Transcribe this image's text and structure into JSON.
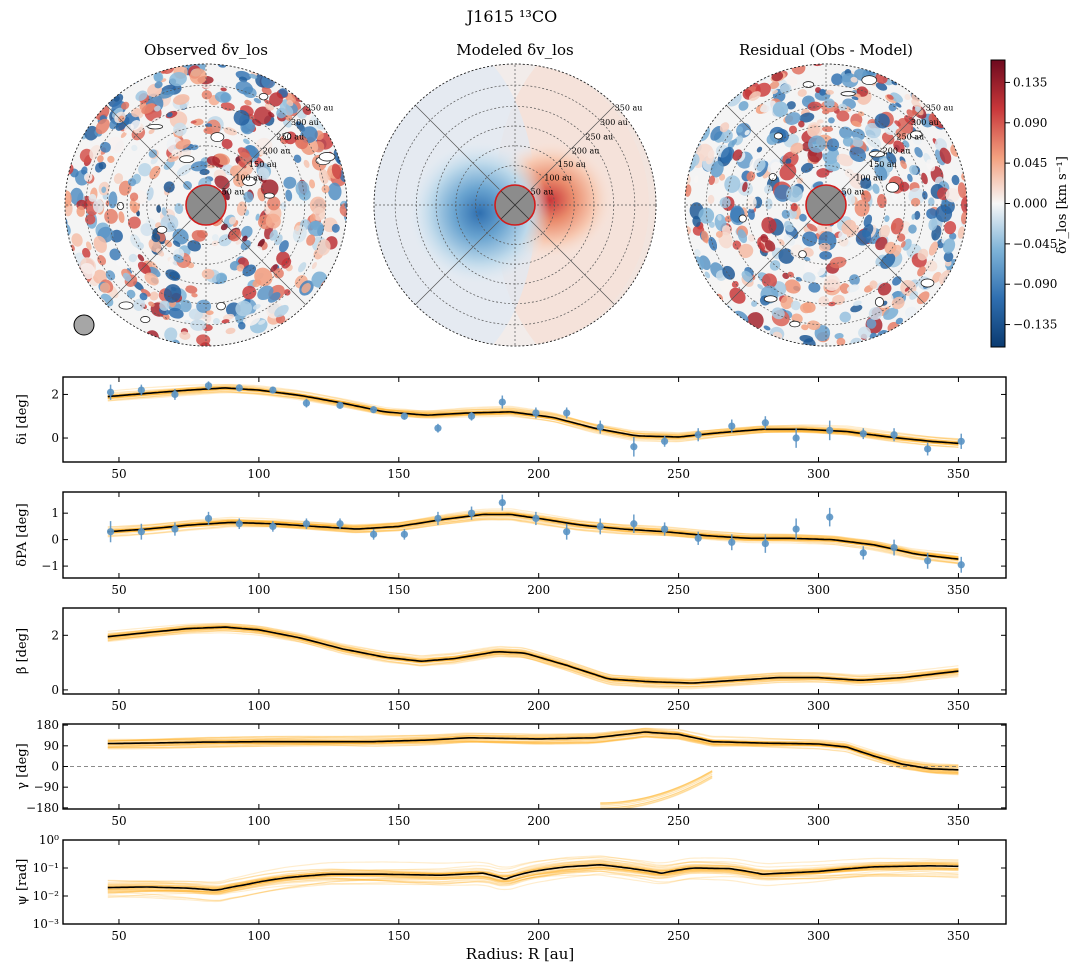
{
  "figure": {
    "title": "J1615 ¹³CO",
    "xlabel": "Radius: R [au]"
  },
  "maps": [
    {
      "title": "Observed δv_los",
      "kind": "observed"
    },
    {
      "title": "Modeled δv_los",
      "kind": "model"
    },
    {
      "title": "Residual (Obs - Model)",
      "kind": "residual"
    }
  ],
  "ring_labels": [
    "50 au",
    "100 au",
    "150 au",
    "200 au",
    "250 au",
    "300 au",
    "350 au"
  ],
  "colorbar": {
    "label": "δv_los [km s⁻¹]",
    "ticks": [
      "0.135",
      "0.090",
      "0.045",
      "0.000",
      "−0.045",
      "−0.090",
      "−0.135"
    ],
    "tick_values": [
      0.135,
      0.09,
      0.045,
      0.0,
      -0.045,
      -0.09,
      -0.135
    ],
    "range": [
      -0.16,
      0.16
    ],
    "colors": [
      "#0a3a70",
      "#2f6fb0",
      "#7fb4d8",
      "#f7f7f7",
      "#f3a07f",
      "#c8373a",
      "#6e0a1e"
    ]
  },
  "colors": {
    "band": "#ffae1a",
    "line": "#000000",
    "points": "#5a93c4"
  },
  "chart_data": [
    {
      "type": "line",
      "ylabel": "δi [deg]",
      "ylim": [
        -1.1,
        2.8
      ],
      "yticks": [
        0,
        2
      ],
      "xlim": [
        30,
        367
      ],
      "xticks": [
        50,
        100,
        150,
        200,
        250,
        300,
        350
      ],
      "series": [
        {
          "role": "fit",
          "x": [
            46,
            60,
            75,
            88,
            100,
            115,
            130,
            145,
            160,
            175,
            190,
            205,
            220,
            235,
            250,
            265,
            280,
            295,
            310,
            325,
            340,
            351
          ],
          "y": [
            1.9,
            2.05,
            2.2,
            2.3,
            2.2,
            1.95,
            1.6,
            1.2,
            1.05,
            1.15,
            1.2,
            0.95,
            0.45,
            0.1,
            0.05,
            0.25,
            0.4,
            0.4,
            0.3,
            0.05,
            -0.15,
            -0.25
          ]
        },
        {
          "role": "data",
          "x": [
            47,
            58,
            70,
            82,
            93,
            105,
            117,
            129,
            141,
            152,
            164,
            176,
            187,
            199,
            210,
            222,
            234,
            245,
            257,
            269,
            281,
            292,
            304,
            316,
            327,
            339,
            351
          ],
          "y": [
            2.1,
            2.2,
            2.0,
            2.4,
            2.3,
            2.2,
            1.6,
            1.5,
            1.3,
            1.0,
            0.45,
            1.0,
            1.65,
            1.15,
            1.15,
            0.5,
            -0.4,
            -0.15,
            0.15,
            0.55,
            0.7,
            0.0,
            0.35,
            0.2,
            0.15,
            -0.5,
            -0.15
          ],
          "err": [
            0.35,
            0.25,
            0.25,
            0.2,
            0.15,
            0.15,
            0.2,
            0.15,
            0.15,
            0.15,
            0.2,
            0.2,
            0.3,
            0.25,
            0.25,
            0.3,
            0.45,
            0.25,
            0.3,
            0.3,
            0.3,
            0.45,
            0.45,
            0.25,
            0.3,
            0.3,
            0.35
          ]
        }
      ]
    },
    {
      "type": "line",
      "ylabel": "δPA [deg]",
      "ylim": [
        -1.45,
        1.8
      ],
      "yticks": [
        -1,
        0,
        1
      ],
      "xlim": [
        30,
        367
      ],
      "xticks": [
        50,
        100,
        150,
        200,
        250,
        300,
        350
      ],
      "series": [
        {
          "role": "fit",
          "x": [
            46,
            60,
            75,
            90,
            105,
            120,
            135,
            150,
            165,
            180,
            190,
            200,
            215,
            230,
            245,
            260,
            275,
            290,
            305,
            320,
            335,
            351
          ],
          "y": [
            0.3,
            0.4,
            0.55,
            0.65,
            0.6,
            0.5,
            0.4,
            0.5,
            0.75,
            0.95,
            0.95,
            0.8,
            0.55,
            0.4,
            0.3,
            0.15,
            0.05,
            0.05,
            0.0,
            -0.2,
            -0.55,
            -0.75
          ]
        },
        {
          "role": "data",
          "x": [
            47,
            58,
            70,
            82,
            93,
            105,
            117,
            129,
            141,
            152,
            164,
            176,
            187,
            199,
            210,
            222,
            234,
            245,
            257,
            269,
            281,
            292,
            304,
            316,
            327,
            339,
            351
          ],
          "y": [
            0.3,
            0.3,
            0.4,
            0.8,
            0.6,
            0.5,
            0.6,
            0.6,
            0.2,
            0.2,
            0.8,
            1.0,
            1.4,
            0.8,
            0.3,
            0.5,
            0.6,
            0.4,
            0.05,
            -0.1,
            -0.15,
            0.4,
            0.85,
            -0.5,
            -0.3,
            -0.8,
            -0.95
          ],
          "err": [
            0.4,
            0.3,
            0.25,
            0.25,
            0.2,
            0.2,
            0.2,
            0.2,
            0.2,
            0.2,
            0.25,
            0.25,
            0.3,
            0.25,
            0.3,
            0.3,
            0.35,
            0.25,
            0.25,
            0.3,
            0.35,
            0.4,
            0.35,
            0.25,
            0.3,
            0.3,
            0.3
          ]
        }
      ]
    },
    {
      "type": "line",
      "ylabel": "β [deg]",
      "ylim": [
        -0.15,
        3.0
      ],
      "yticks": [
        0,
        2
      ],
      "xlim": [
        30,
        367
      ],
      "xticks": [
        50,
        100,
        150,
        200,
        250,
        300,
        350
      ],
      "series": [
        {
          "role": "fit",
          "x": [
            46,
            60,
            75,
            88,
            100,
            115,
            130,
            145,
            158,
            170,
            185,
            195,
            210,
            225,
            240,
            255,
            270,
            285,
            300,
            315,
            330,
            351
          ],
          "y": [
            1.95,
            2.1,
            2.25,
            2.3,
            2.2,
            1.9,
            1.5,
            1.2,
            1.05,
            1.15,
            1.4,
            1.35,
            0.9,
            0.4,
            0.3,
            0.25,
            0.35,
            0.45,
            0.45,
            0.35,
            0.45,
            0.7
          ]
        }
      ]
    },
    {
      "type": "line",
      "ylabel": "γ [deg]",
      "ylim": [
        -185,
        185
      ],
      "yticks": [
        -180,
        -90,
        0,
        90,
        180
      ],
      "xlim": [
        30,
        367
      ],
      "xticks": [
        50,
        100,
        150,
        200,
        250,
        300,
        350
      ],
      "series": [
        {
          "role": "fit",
          "x": [
            46,
            60,
            80,
            100,
            120,
            140,
            160,
            175,
            200,
            220,
            238,
            250,
            262,
            280,
            300,
            310,
            320,
            330,
            340,
            351
          ],
          "y": [
            100,
            102,
            106,
            108,
            108,
            108,
            115,
            125,
            120,
            125,
            150,
            140,
            108,
            102,
            98,
            85,
            45,
            10,
            -10,
            -15
          ]
        },
        {
          "role": "reference",
          "name": "",
          "y": 0
        }
      ]
    },
    {
      "type": "line",
      "ylabel": "ψ [rad]",
      "yscale": "log",
      "ylim": [
        0.001,
        1
      ],
      "yticks": [
        "10⁻³",
        "10⁻²",
        "10⁻¹",
        "10⁰"
      ],
      "xlim": [
        30,
        367
      ],
      "xticks": [
        50,
        100,
        150,
        200,
        250,
        300,
        350
      ],
      "series": [
        {
          "role": "fit",
          "x": [
            46,
            60,
            75,
            85,
            95,
            110,
            125,
            145,
            165,
            180,
            188,
            198,
            210,
            222,
            235,
            244,
            255,
            268,
            280,
            300,
            320,
            340,
            351
          ],
          "y": [
            0.02,
            0.021,
            0.019,
            0.016,
            0.025,
            0.045,
            0.06,
            0.06,
            0.055,
            0.065,
            0.04,
            0.075,
            0.11,
            0.13,
            0.09,
            0.065,
            0.1,
            0.095,
            0.06,
            0.075,
            0.11,
            0.12,
            0.115
          ]
        }
      ]
    }
  ]
}
